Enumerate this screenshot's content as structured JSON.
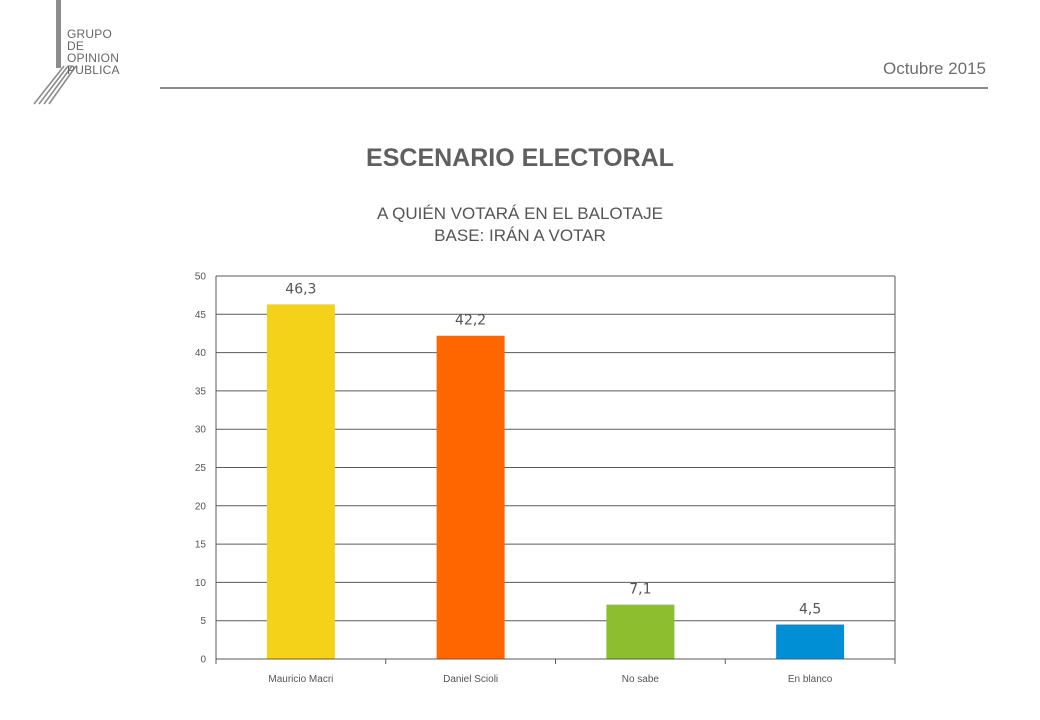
{
  "header": {
    "logo_text": "GRUPO\nDE\nOPINION\nPUBLICA",
    "date": "Octubre 2015"
  },
  "titles": {
    "main": "ESCENARIO ELECTORAL",
    "sub1": "A QUIÉN VOTARÁ EN EL BALOTAJE",
    "sub2": "BASE: IRÁN A VOTAR"
  },
  "chart_data": {
    "type": "bar",
    "categories": [
      "Mauricio Macri",
      "Daniel Scioli",
      "No sabe",
      "En blanco"
    ],
    "values": [
      46.3,
      42.2,
      7.1,
      4.5
    ],
    "value_labels": [
      "46,3",
      "42,2",
      "7,1",
      "4,5"
    ],
    "colors": [
      "#F5D21A",
      "#FF6600",
      "#8DBE30",
      "#008FD5"
    ],
    "ylim": [
      0,
      50
    ],
    "yticks": [
      0,
      5,
      10,
      15,
      20,
      25,
      30,
      35,
      40,
      45,
      50
    ],
    "grid": true,
    "legend": "none"
  }
}
